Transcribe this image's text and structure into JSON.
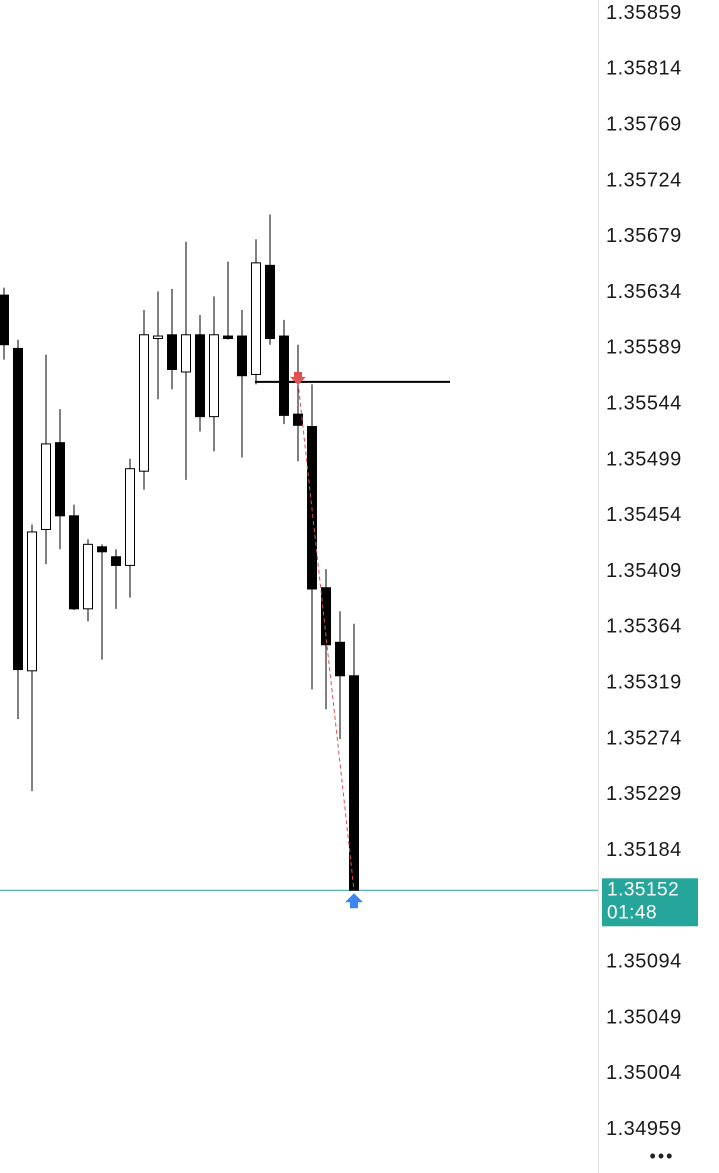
{
  "chart_data": {
    "type": "candlestick",
    "candles": {
      "open": [
        1.35632,
        1.35589,
        1.35329,
        1.35443,
        1.35513,
        1.35454,
        1.35379,
        1.35429,
        1.35421,
        1.35414,
        1.3549,
        1.35597,
        1.356,
        1.3557,
        1.356,
        1.35534,
        1.35599,
        1.35599,
        1.35568,
        1.35656,
        1.35599,
        1.35536,
        1.35526,
        1.35396,
        1.35352,
        1.35325
      ],
      "high": [
        1.35638,
        1.35596,
        1.35447,
        1.35584,
        1.3554,
        1.35463,
        1.35435,
        1.35431,
        1.35427,
        1.355,
        1.3562,
        1.35635,
        1.35637,
        1.35675,
        1.35616,
        1.35631,
        1.35659,
        1.3562,
        1.35677,
        1.35697,
        1.35612,
        1.35592,
        1.3556,
        1.35411,
        1.35377,
        1.35367
      ],
      "low": [
        1.3558,
        1.3529,
        1.35232,
        1.35415,
        1.35427,
        1.35378,
        1.35369,
        1.35338,
        1.35379,
        1.35388,
        1.35475,
        1.35548,
        1.35556,
        1.35483,
        1.35522,
        1.35506,
        1.35596,
        1.35501,
        1.3556,
        1.35592,
        1.35528,
        1.35498,
        1.35314,
        1.35298,
        1.35274,
        1.35152
      ],
      "close": [
        1.35592,
        1.3533,
        1.35441,
        1.35512,
        1.35454,
        1.35379,
        1.35431,
        1.35425,
        1.35414,
        1.35492,
        1.356,
        1.35599,
        1.35572,
        1.356,
        1.35534,
        1.356,
        1.35597,
        1.35567,
        1.35658,
        1.35597,
        1.35535,
        1.35527,
        1.35395,
        1.3535,
        1.35325,
        1.35152
      ]
    },
    "up_color": "#ffffff",
    "down_color": "#000000",
    "ylim": [
      1.34924,
      1.3587
    ],
    "yticks": [
      1.35859,
      1.35814,
      1.35769,
      1.35724,
      1.35679,
      1.35634,
      1.35589,
      1.35544,
      1.35499,
      1.35454,
      1.35409,
      1.35364,
      1.35319,
      1.35274,
      1.35229,
      1.35184,
      1.35094,
      1.35049,
      1.35004,
      1.34959
    ],
    "grid": false,
    "last_price": 1.35152,
    "last_price_color": "#26a69a",
    "timer": "01:48",
    "order_line": 1.35562,
    "trade": {
      "open_price": 1.35562,
      "close_price": 1.35152,
      "open_color": "#e05252",
      "close_color": "#3d85f0"
    },
    "menu_label": "•••"
  }
}
